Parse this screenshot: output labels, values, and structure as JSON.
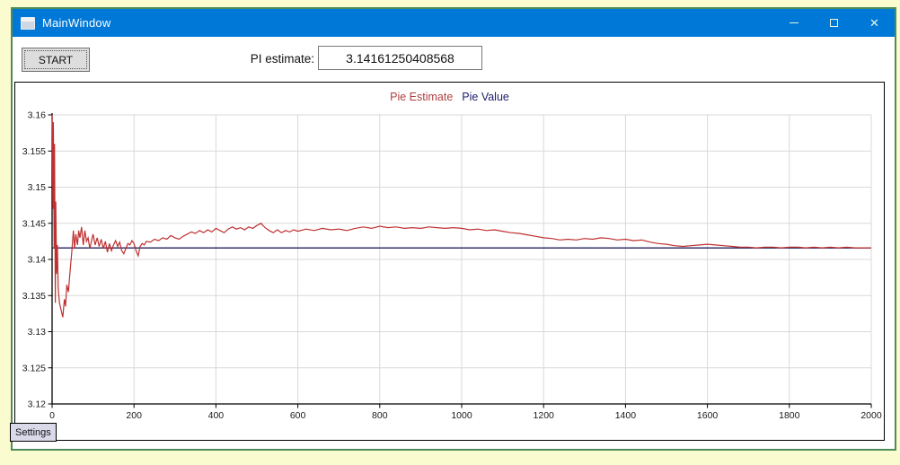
{
  "window": {
    "title": "MainWindow",
    "minimize_label": "minimize",
    "maximize_label": "maximize",
    "close_label": "close",
    "close_glyph": "✕"
  },
  "toolbar": {
    "start_label": "START",
    "pi_label": "PI estimate:",
    "pi_value": "3.14161250408568"
  },
  "tabs": {
    "settings_label": "Settings"
  },
  "colors": {
    "titlebar": "#0078d7",
    "frame_border": "#4d8c5a",
    "page_background": "#fbfbd0",
    "gridline": "#d9d9d9",
    "axis": "#000000",
    "estimate_line": "#bf3030",
    "value_line": "#23235e",
    "legend_estimate": "#b04040",
    "legend_value": "#202070"
  },
  "chart_data": {
    "type": "line",
    "title": "",
    "legend_position": "top-center",
    "grid": true,
    "x_axis": {
      "min": 0,
      "max": 2000,
      "tick_step": 200
    },
    "y_axis": {
      "min": 3.12,
      "max": 3.16,
      "tick_step": 0.005
    },
    "series": [
      {
        "name": "Pie Estimate",
        "color": "#bf3030",
        "points": [
          [
            0,
            3.16
          ],
          [
            2,
            3.147
          ],
          [
            3,
            3.159
          ],
          [
            5,
            3.1415
          ],
          [
            6,
            3.156
          ],
          [
            8,
            3.134
          ],
          [
            9,
            3.148
          ],
          [
            11,
            3.138
          ],
          [
            13,
            3.142
          ],
          [
            15,
            3.136
          ],
          [
            18,
            3.134
          ],
          [
            22,
            3.133
          ],
          [
            26,
            3.132
          ],
          [
            30,
            3.1345
          ],
          [
            33,
            3.1335
          ],
          [
            36,
            3.1365
          ],
          [
            40,
            3.1355
          ],
          [
            44,
            3.1385
          ],
          [
            48,
            3.141
          ],
          [
            52,
            3.144
          ],
          [
            55,
            3.1415
          ],
          [
            58,
            3.1435
          ],
          [
            62,
            3.142
          ],
          [
            65,
            3.144
          ],
          [
            68,
            3.143
          ],
          [
            72,
            3.1445
          ],
          [
            76,
            3.142
          ],
          [
            80,
            3.144
          ],
          [
            84,
            3.1425
          ],
          [
            88,
            3.143
          ],
          [
            92,
            3.1415
          ],
          [
            96,
            3.1425
          ],
          [
            100,
            3.1435
          ],
          [
            105,
            3.142
          ],
          [
            110,
            3.143
          ],
          [
            115,
            3.1418
          ],
          [
            120,
            3.1428
          ],
          [
            125,
            3.1415
          ],
          [
            130,
            3.1425
          ],
          [
            135,
            3.141
          ],
          [
            140,
            3.1422
          ],
          [
            145,
            3.1412
          ],
          [
            150,
            3.142
          ],
          [
            155,
            3.1426
          ],
          [
            160,
            3.1418
          ],
          [
            165,
            3.1424
          ],
          [
            170,
            3.1412
          ],
          [
            175,
            3.1408
          ],
          [
            180,
            3.1415
          ],
          [
            185,
            3.1422
          ],
          [
            190,
            3.142
          ],
          [
            195,
            3.1426
          ],
          [
            200,
            3.1422
          ],
          [
            205,
            3.1412
          ],
          [
            210,
            3.1405
          ],
          [
            215,
            3.1418
          ],
          [
            220,
            3.1422
          ],
          [
            225,
            3.142
          ],
          [
            230,
            3.1425
          ],
          [
            240,
            3.1424
          ],
          [
            250,
            3.1428
          ],
          [
            260,
            3.1426
          ],
          [
            270,
            3.143
          ],
          [
            280,
            3.1428
          ],
          [
            290,
            3.1433
          ],
          [
            300,
            3.143
          ],
          [
            310,
            3.1428
          ],
          [
            320,
            3.1432
          ],
          [
            330,
            3.1435
          ],
          [
            340,
            3.1438
          ],
          [
            350,
            3.1436
          ],
          [
            360,
            3.144
          ],
          [
            370,
            3.1437
          ],
          [
            380,
            3.1441
          ],
          [
            390,
            3.1438
          ],
          [
            400,
            3.1443
          ],
          [
            410,
            3.144
          ],
          [
            420,
            3.1437
          ],
          [
            430,
            3.1442
          ],
          [
            440,
            3.1445
          ],
          [
            450,
            3.1442
          ],
          [
            460,
            3.1444
          ],
          [
            470,
            3.1441
          ],
          [
            480,
            3.1445
          ],
          [
            490,
            3.1443
          ],
          [
            500,
            3.1447
          ],
          [
            510,
            3.145
          ],
          [
            520,
            3.1444
          ],
          [
            530,
            3.144
          ],
          [
            540,
            3.1437
          ],
          [
            550,
            3.1441
          ],
          [
            560,
            3.1437
          ],
          [
            570,
            3.144
          ],
          [
            580,
            3.1438
          ],
          [
            590,
            3.1441
          ],
          [
            600,
            3.1439
          ],
          [
            620,
            3.1442
          ],
          [
            640,
            3.144
          ],
          [
            660,
            3.1443
          ],
          [
            680,
            3.1441
          ],
          [
            700,
            3.1442
          ],
          [
            720,
            3.144
          ],
          [
            740,
            3.1443
          ],
          [
            760,
            3.1445
          ],
          [
            780,
            3.1443
          ],
          [
            800,
            3.1446
          ],
          [
            820,
            3.1444
          ],
          [
            840,
            3.1445
          ],
          [
            860,
            3.1443
          ],
          [
            880,
            3.1444
          ],
          [
            900,
            3.1443
          ],
          [
            920,
            3.1445
          ],
          [
            940,
            3.1444
          ],
          [
            960,
            3.1443
          ],
          [
            980,
            3.1444
          ],
          [
            1000,
            3.1443
          ],
          [
            1020,
            3.1441
          ],
          [
            1040,
            3.1442
          ],
          [
            1060,
            3.144
          ],
          [
            1080,
            3.1441
          ],
          [
            1100,
            3.1439
          ],
          [
            1120,
            3.1437
          ],
          [
            1140,
            3.1436
          ],
          [
            1160,
            3.1434
          ],
          [
            1180,
            3.1432
          ],
          [
            1200,
            3.143
          ],
          [
            1220,
            3.1429
          ],
          [
            1240,
            3.1427
          ],
          [
            1260,
            3.1428
          ],
          [
            1280,
            3.1427
          ],
          [
            1300,
            3.1429
          ],
          [
            1320,
            3.1428
          ],
          [
            1340,
            3.143
          ],
          [
            1360,
            3.1429
          ],
          [
            1380,
            3.1427
          ],
          [
            1400,
            3.1428
          ],
          [
            1420,
            3.1426
          ],
          [
            1440,
            3.1427
          ],
          [
            1460,
            3.1424
          ],
          [
            1480,
            3.1422
          ],
          [
            1500,
            3.1421
          ],
          [
            1520,
            3.1419
          ],
          [
            1540,
            3.1418
          ],
          [
            1560,
            3.1419
          ],
          [
            1580,
            3.142
          ],
          [
            1600,
            3.1421
          ],
          [
            1620,
            3.142
          ],
          [
            1640,
            3.1419
          ],
          [
            1660,
            3.1418
          ],
          [
            1680,
            3.1417
          ],
          [
            1700,
            3.1417
          ],
          [
            1720,
            3.1416
          ],
          [
            1740,
            3.1417
          ],
          [
            1760,
            3.1417
          ],
          [
            1780,
            3.1416
          ],
          [
            1800,
            3.1417
          ],
          [
            1820,
            3.1417
          ],
          [
            1840,
            3.1416
          ],
          [
            1860,
            3.1417
          ],
          [
            1880,
            3.1416
          ],
          [
            1900,
            3.1417
          ],
          [
            1920,
            3.1416
          ],
          [
            1940,
            3.1417
          ],
          [
            1960,
            3.1416
          ],
          [
            1980,
            3.1416
          ],
          [
            2000,
            3.1416
          ]
        ]
      },
      {
        "name": "Pie Value",
        "color": "#23235e",
        "points": [
          [
            0,
            3.14159
          ],
          [
            2000,
            3.14159
          ]
        ]
      }
    ]
  }
}
